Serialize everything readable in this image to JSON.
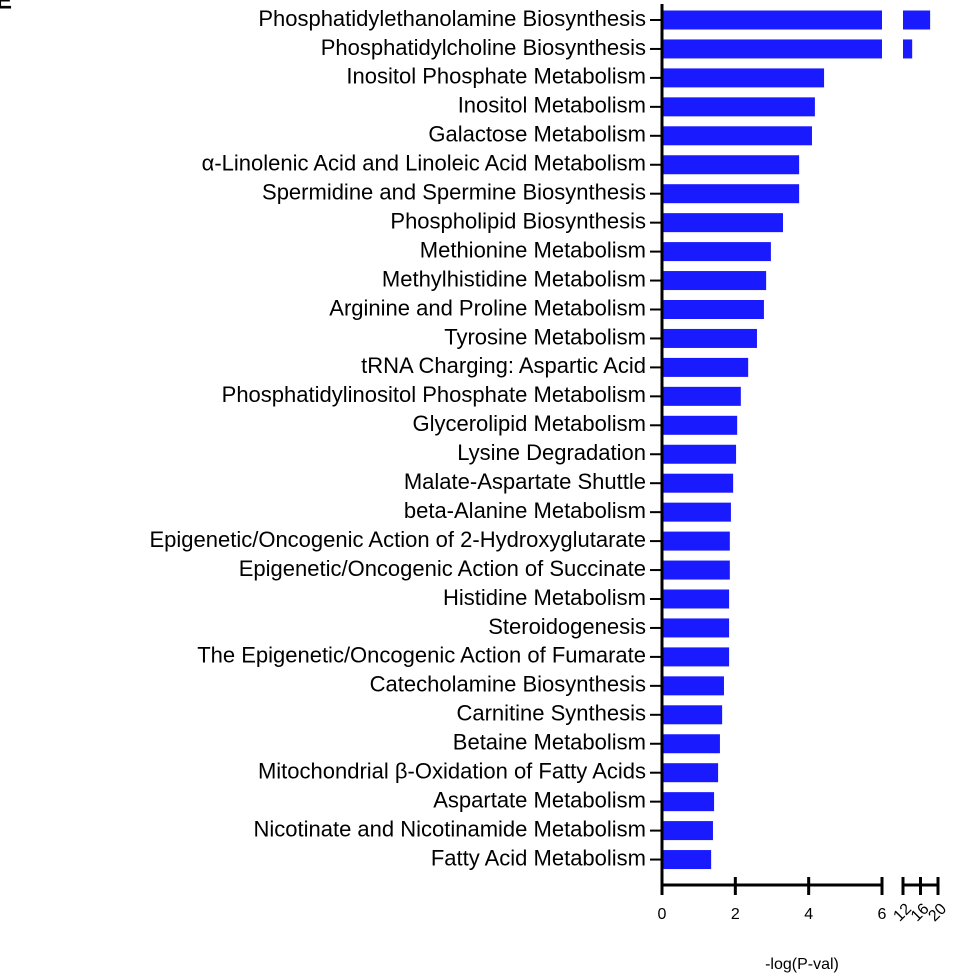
{
  "chart_data": {
    "type": "bar",
    "orientation": "horizontal",
    "panel_label": "E",
    "x_label": "-log(P-val)",
    "categories": [
      "Phosphatidylethanolamine Biosynthesis",
      "Phosphatidylcholine Biosynthesis",
      "Inositol Phosphate Metabolism",
      "Inositol Metabolism",
      "Galactose Metabolism",
      "α-Linolenic Acid and Linoleic Acid Metabolism",
      "Spermidine and Spermine Biosynthesis",
      "Phospholipid Biosynthesis",
      "Methionine Metabolism",
      "Methylhistidine Metabolism",
      "Arginine and Proline Metabolism",
      "Tyrosine Metabolism",
      "tRNA Charging: Aspartic Acid",
      "Phosphatidylinositol Phosphate Metabolism",
      "Glycerolipid Metabolism",
      "Lysine Degradation",
      "Malate-Aspartate Shuttle",
      "beta-Alanine Metabolism",
      "Epigenetic/Oncogenic Action of 2-Hydroxyglutarate",
      "Epigenetic/Oncogenic Action of Succinate",
      "Histidine Metabolism",
      "Steroidogenesis",
      "The Epigenetic/Oncogenic Action of Fumarate",
      "Catecholamine Biosynthesis",
      "Carnitine Synthesis",
      "Betaine Metabolism",
      "Mitochondrial β-Oxidation of Fatty Acids",
      "Aspartate Metabolism",
      "Nicotinate and Nicotinamide Metabolism",
      "Fatty Acid Metabolism"
    ],
    "values": [
      18.2,
      14.1,
      4.42,
      4.17,
      4.09,
      3.74,
      3.74,
      3.3,
      2.97,
      2.84,
      2.78,
      2.59,
      2.35,
      2.15,
      2.05,
      2.02,
      1.94,
      1.88,
      1.85,
      1.85,
      1.83,
      1.83,
      1.83,
      1.69,
      1.64,
      1.58,
      1.53,
      1.42,
      1.39,
      1.34
    ],
    "color": "#1a1aff",
    "xlim": [
      0,
      20
    ],
    "x_break": [
      6,
      12
    ],
    "xticks": [
      0,
      2,
      4,
      6,
      12,
      16,
      20
    ]
  }
}
